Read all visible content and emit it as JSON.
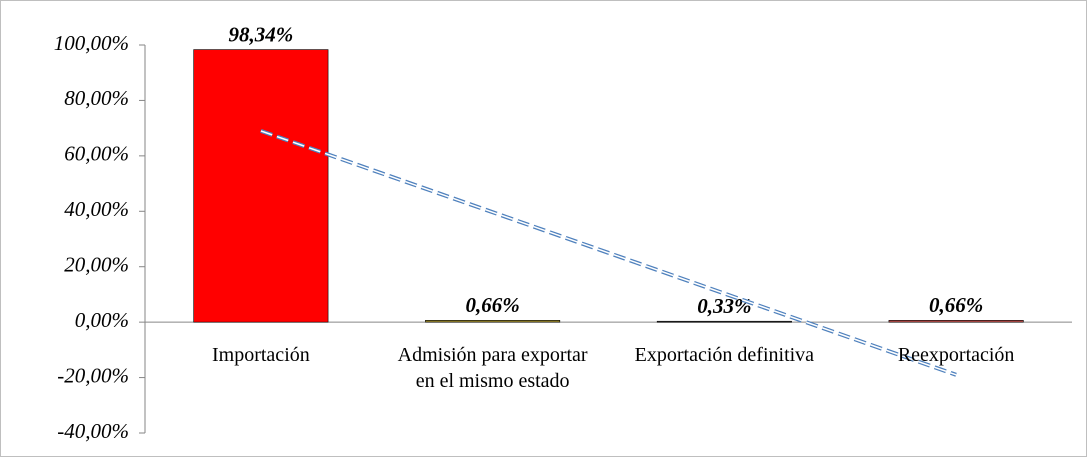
{
  "chart_data": {
    "type": "bar",
    "categories": [
      "Importación",
      "Admisión para exportar en el mismo estado",
      "Exportación definitiva",
      "Reexportación"
    ],
    "values": [
      98.34,
      0.66,
      0.33,
      0.66
    ],
    "value_labels": [
      "98,34%",
      "0,66%",
      "0,33%",
      "0,66%"
    ],
    "colors": [
      "#ff0000",
      "#9c8a2e",
      "#404040",
      "#c0504d"
    ],
    "ylim": [
      -40,
      100
    ],
    "yticks": [
      {
        "value": -40,
        "label": "-40,00%"
      },
      {
        "value": -20,
        "label": "-20,00%"
      },
      {
        "value": 0,
        "label": "0,00%"
      },
      {
        "value": 20,
        "label": "20,00%"
      },
      {
        "value": 40,
        "label": "40,00%"
      },
      {
        "value": 60,
        "label": "60,00%"
      },
      {
        "value": 80,
        "label": "80,00%"
      },
      {
        "value": 100,
        "label": "100,00%"
      }
    ],
    "trendline": {
      "type": "linear",
      "color": "#4f81bd",
      "dashed": true
    }
  }
}
